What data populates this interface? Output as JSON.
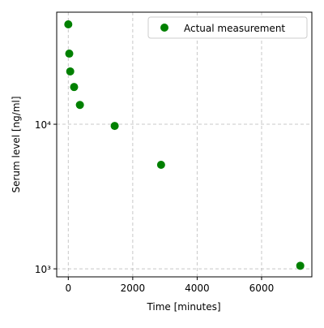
{
  "chart_data": {
    "type": "scatter",
    "xlabel": "Time [minutes]",
    "ylabel": "Serum level [ng/ml]",
    "series": [
      {
        "name": "Actual measurement",
        "color": "#008000",
        "x": [
          0,
          30,
          60,
          180,
          360,
          1440,
          2880,
          7200
        ],
        "values": [
          49100,
          30800,
          23200,
          18100,
          13600,
          9740,
          5240,
          1050
        ]
      }
    ],
    "xlim": [
      -360,
      7560
    ],
    "xticks": [
      0,
      2000,
      4000,
      6000
    ],
    "ylim": [
      880,
      59600
    ],
    "yticks": [
      {
        "value": 1000,
        "label": "10³"
      },
      {
        "value": 10000,
        "label": "10⁴"
      }
    ],
    "ylog": true,
    "grid": true,
    "legend": "upper right"
  }
}
